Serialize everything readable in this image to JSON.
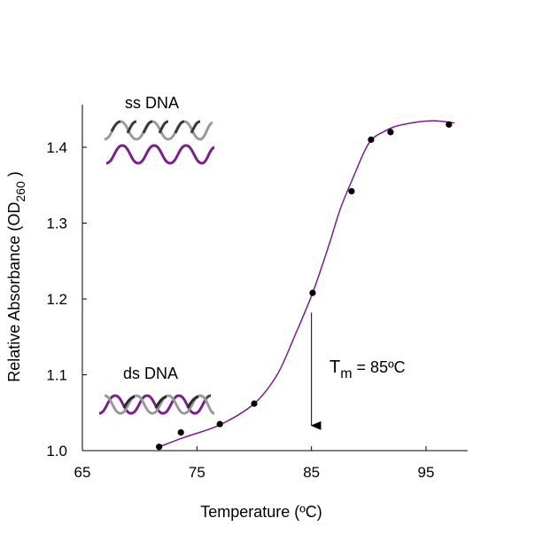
{
  "chart_data": {
    "type": "scatter",
    "xlabel": "Temperature (ºC)",
    "ylabel": "Relative Absorbance (OD260 )",
    "ylabel_parts": {
      "main": "Relative Absorbance (OD",
      "sub": "260",
      "end": " )"
    },
    "xlim": [
      65,
      99
    ],
    "ylim": [
      1.0,
      1.46
    ],
    "x_ticks": [
      65,
      75,
      85,
      95
    ],
    "y_ticks": [
      1.0,
      1.1,
      1.2,
      1.3,
      1.4
    ],
    "x_tick_labels": [
      "65",
      "75",
      "85",
      "95"
    ],
    "y_tick_labels": [
      "1.0",
      "1.1",
      "1.2",
      "1.3",
      "1.4"
    ],
    "grid": false,
    "colors": {
      "curve": "#7b1d8c",
      "points": "#000000",
      "arrow": "#000000"
    },
    "points": [
      {
        "x": 71.7,
        "y": 1.005
      },
      {
        "x": 73.6,
        "y": 1.024
      },
      {
        "x": 77.0,
        "y": 1.035
      },
      {
        "x": 80.0,
        "y": 1.062
      },
      {
        "x": 85.1,
        "y": 1.208
      },
      {
        "x": 88.5,
        "y": 1.342
      },
      {
        "x": 90.2,
        "y": 1.41
      },
      {
        "x": 91.9,
        "y": 1.42
      },
      {
        "x": 97.0,
        "y": 1.43
      }
    ],
    "fit_curve": [
      [
        71.7,
        1.005
      ],
      [
        74,
        1.018
      ],
      [
        77,
        1.034
      ],
      [
        80,
        1.062
      ],
      [
        82,
        1.1
      ],
      [
        83.5,
        1.15
      ],
      [
        85.1,
        1.208
      ],
      [
        86.5,
        1.27
      ],
      [
        87.5,
        1.318
      ],
      [
        88.5,
        1.355
      ],
      [
        90,
        1.405
      ],
      [
        91.5,
        1.422
      ],
      [
        93,
        1.43
      ],
      [
        95.5,
        1.435
      ],
      [
        97.5,
        1.432
      ]
    ],
    "annotations": {
      "ss_label": "ss DNA",
      "ds_label": "ds DNA",
      "tm": {
        "symbol": "T",
        "sub": "m",
        "text": " = 85ºC",
        "x": 85
      }
    }
  }
}
